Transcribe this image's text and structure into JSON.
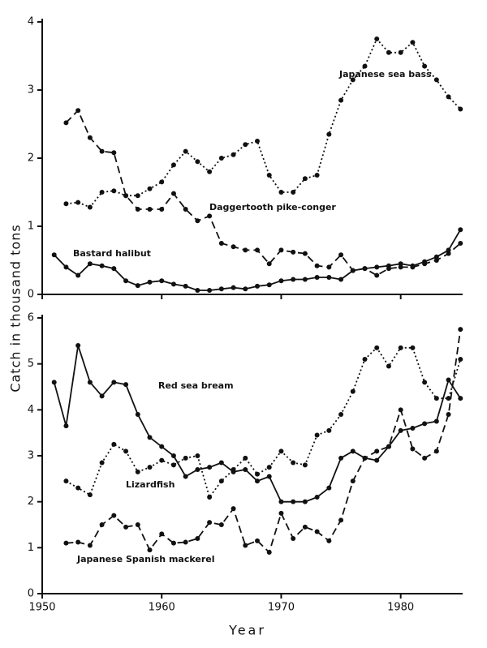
{
  "chart_data": [
    {
      "type": "line",
      "ylabel": "Catch in thousand tons",
      "x": [
        1951,
        1952,
        1953,
        1954,
        1955,
        1956,
        1957,
        1958,
        1959,
        1960,
        1961,
        1962,
        1963,
        1964,
        1965,
        1966,
        1967,
        1968,
        1969,
        1970,
        1971,
        1972,
        1973,
        1974,
        1975,
        1976,
        1977,
        1978,
        1979,
        1980,
        1981,
        1982,
        1983,
        1984,
        1985
      ],
      "xlim": [
        1950,
        1986
      ],
      "xticks": [
        1950,
        1960,
        1970,
        1980
      ],
      "ylim": [
        0,
        4
      ],
      "yticks": [
        0,
        1,
        2,
        3,
        4
      ],
      "series": [
        {
          "name": "Japanese sea bass",
          "color": "#111111",
          "dash": "dotted",
          "values": [
            null,
            1.33,
            1.35,
            1.28,
            1.5,
            1.52,
            1.45,
            1.45,
            1.55,
            1.65,
            1.9,
            2.1,
            1.95,
            1.8,
            2.0,
            2.05,
            2.2,
            2.25,
            1.75,
            1.5,
            1.5,
            1.7,
            1.75,
            2.35,
            2.85,
            3.15,
            3.35,
            3.75,
            3.55,
            3.55,
            3.7,
            3.35,
            3.15,
            2.9,
            2.72
          ]
        },
        {
          "name": "Daggertooth pike-conger",
          "color": "#111111",
          "dash": "dashed",
          "values": [
            null,
            2.52,
            2.7,
            2.3,
            2.1,
            2.08,
            1.45,
            1.25,
            1.25,
            1.25,
            1.48,
            1.25,
            1.08,
            1.15,
            0.75,
            0.7,
            0.65,
            0.65,
            0.45,
            0.65,
            0.62,
            0.6,
            0.42,
            0.4,
            0.58,
            0.35,
            0.38,
            0.28,
            0.38,
            0.4,
            0.4,
            0.45,
            0.5,
            0.6,
            0.75
          ]
        },
        {
          "name": "Bastard halibut",
          "color": "#111111",
          "dash": "solid",
          "values": [
            0.58,
            0.4,
            0.28,
            0.45,
            0.42,
            0.38,
            0.2,
            0.13,
            0.18,
            0.2,
            0.15,
            0.12,
            0.06,
            0.06,
            0.08,
            0.1,
            0.08,
            0.12,
            0.14,
            0.2,
            0.22,
            0.22,
            0.25,
            0.25,
            0.22,
            0.35,
            0.38,
            0.4,
            0.42,
            0.45,
            0.42,
            0.48,
            0.55,
            0.65,
            0.95
          ]
        }
      ]
    },
    {
      "type": "line",
      "xlabel": "Year",
      "x": [
        1951,
        1952,
        1953,
        1954,
        1955,
        1956,
        1957,
        1958,
        1959,
        1960,
        1961,
        1962,
        1963,
        1964,
        1965,
        1966,
        1967,
        1968,
        1969,
        1970,
        1971,
        1972,
        1973,
        1974,
        1975,
        1976,
        1977,
        1978,
        1979,
        1980,
        1981,
        1982,
        1983,
        1984,
        1985
      ],
      "xlim": [
        1950,
        1986
      ],
      "xticks": [
        1950,
        1960,
        1970,
        1980
      ],
      "ylim": [
        0,
        6
      ],
      "yticks": [
        0,
        1,
        2,
        3,
        4,
        5,
        6
      ],
      "series": [
        {
          "name": "Red sea bream",
          "color": "#111111",
          "dash": "solid",
          "values": [
            4.6,
            3.65,
            5.4,
            4.6,
            4.3,
            4.6,
            4.55,
            3.9,
            3.4,
            3.2,
            3.0,
            2.55,
            2.7,
            2.75,
            2.85,
            2.65,
            2.7,
            2.45,
            2.55,
            2.0,
            2.0,
            2.0,
            2.1,
            2.3,
            2.95,
            3.1,
            2.95,
            2.9,
            3.2,
            3.55,
            3.6,
            3.7,
            3.75,
            4.65,
            4.25
          ]
        },
        {
          "name": "Lizardfish",
          "color": "#111111",
          "dash": "dotted",
          "values": [
            null,
            2.45,
            2.3,
            2.15,
            2.85,
            3.25,
            3.1,
            2.65,
            2.75,
            2.9,
            2.8,
            2.95,
            3.0,
            2.1,
            2.45,
            2.7,
            2.95,
            2.6,
            2.75,
            3.1,
            2.85,
            2.8,
            3.45,
            3.55,
            3.9,
            4.4,
            5.1,
            5.35,
            4.95,
            5.35,
            5.35,
            4.6,
            4.25,
            4.25,
            5.1
          ]
        },
        {
          "name": "Japanese Spanish mackerel",
          "color": "#111111",
          "dash": "dashed",
          "values": [
            null,
            1.1,
            1.12,
            1.05,
            1.5,
            1.7,
            1.45,
            1.5,
            0.95,
            1.3,
            1.1,
            1.12,
            1.2,
            1.55,
            1.5,
            1.85,
            1.05,
            1.15,
            0.9,
            1.75,
            1.2,
            1.45,
            1.35,
            1.15,
            1.6,
            2.45,
            2.95,
            3.1,
            3.2,
            4.0,
            3.15,
            2.95,
            3.1,
            3.9,
            5.75
          ]
        }
      ]
    }
  ]
}
